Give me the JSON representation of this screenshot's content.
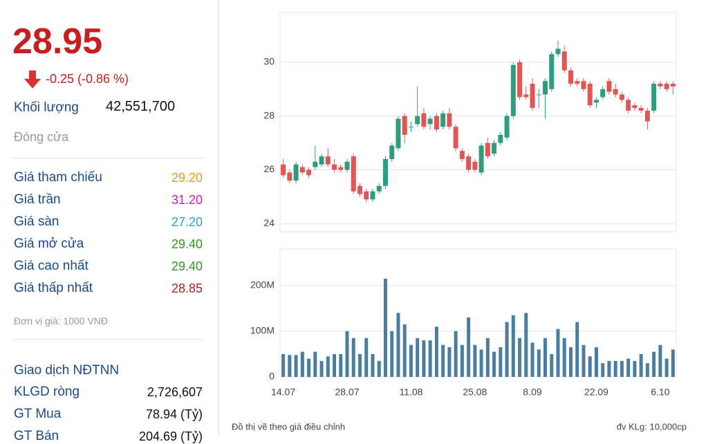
{
  "header": {
    "price": "28.95",
    "change": "-0.25 (-0.86 %)",
    "volume_label": "Khối lượng",
    "volume": "42,551,700",
    "status": "Đóng cửa"
  },
  "prices": [
    {
      "label": "Giá tham chiếu",
      "value": "29.20",
      "color": "#e89a1c"
    },
    {
      "label": "Giá trần",
      "value": "31.20",
      "color": "#c21fc2"
    },
    {
      "label": "Giá sàn",
      "value": "27.20",
      "color": "#2a9fd6"
    },
    {
      "label": "Giá mở cửa",
      "value": "29.40",
      "color": "#2f9a1e"
    },
    {
      "label": "Giá cao nhất",
      "value": "29.40",
      "color": "#2f9a1e"
    },
    {
      "label": "Giá thấp nhất",
      "value": "28.85",
      "color": "#b02222"
    }
  ],
  "unit_note": "Đơn vị giá: 1000 VNĐ",
  "foreign": {
    "title": "Giao dịch NĐTNN",
    "rows": [
      {
        "label": "KLGD ròng",
        "value": "2,726,607"
      },
      {
        "label": "GT Mua",
        "value": "78.94 (Tỷ)"
      },
      {
        "label": "GT Bán",
        "value": "204.69 (Tỷ)"
      }
    ]
  },
  "footer": {
    "note": "Đồ thị vẽ theo giá điều chỉnh",
    "unit": "đv KLg: 10,000cp"
  },
  "chart_data": [
    {
      "type": "candlestick",
      "up_color": "#2e9c7e",
      "down_color": "#e05656",
      "open": [
        26.2,
        25.9,
        25.6,
        26.1,
        26.0,
        26.1,
        26.2,
        26.5,
        26.2,
        26.1,
        26.0,
        26.5,
        25.4,
        25.2,
        24.9,
        25.2,
        25.4,
        26.4,
        26.8,
        28.0,
        27.6,
        27.7,
        28.1,
        27.7,
        28.0,
        27.6,
        28.1,
        27.6,
        26.7,
        26.5,
        26.3,
        25.9,
        27.0,
        26.6,
        27.0,
        27.2,
        28.0,
        30.0,
        28.8,
        29.2,
        28.8,
        28.8,
        29.0,
        30.3,
        30.4,
        29.7,
        29.3,
        29.3,
        29.2,
        28.5,
        28.7,
        29.3,
        29.0,
        28.8,
        28.6,
        28.4,
        28.3,
        28.2,
        28.2,
        29.2,
        29.2,
        29.2
      ],
      "high": [
        26.4,
        26.0,
        26.3,
        26.2,
        26.1,
        26.9,
        26.6,
        26.8,
        26.4,
        26.2,
        26.4,
        26.6,
        25.5,
        25.3,
        25.3,
        25.5,
        26.5,
        27.0,
        28.0,
        28.1,
        27.8,
        29.1,
        28.3,
        28.0,
        28.1,
        28.2,
        28.3,
        27.7,
        26.8,
        26.6,
        26.4,
        27.0,
        27.2,
        27.1,
        27.4,
        28.1,
        30.0,
        30.1,
        29.1,
        29.4,
        29.0,
        29.4,
        30.4,
        30.8,
        30.6,
        29.8,
        29.4,
        29.4,
        29.3,
        28.7,
        29.1,
        29.4,
        29.2,
        28.9,
        28.7,
        28.5,
        28.4,
        28.3,
        29.3,
        29.3,
        29.3,
        29.3
      ],
      "low": [
        25.7,
        25.5,
        25.5,
        25.8,
        25.7,
        26.0,
        26.1,
        26.1,
        25.9,
        25.9,
        25.9,
        25.1,
        25.0,
        24.8,
        24.8,
        25.1,
        25.3,
        26.3,
        26.7,
        27.0,
        27.4,
        27.6,
        27.5,
        27.5,
        27.4,
        27.5,
        27.5,
        26.7,
        26.3,
        25.9,
        25.9,
        25.8,
        26.4,
        26.5,
        26.9,
        27.1,
        27.9,
        28.6,
        28.6,
        28.2,
        28.3,
        27.9,
        28.9,
        30.2,
        29.6,
        29.1,
        29.1,
        28.9,
        28.3,
        28.3,
        28.6,
        28.8,
        28.7,
        28.5,
        28.1,
        28.2,
        28.1,
        27.5,
        28.1,
        29.0,
        28.9,
        28.8
      ],
      "close": [
        25.8,
        25.6,
        26.2,
        25.9,
        25.8,
        26.3,
        26.5,
        26.2,
        26.0,
        26.0,
        26.3,
        25.2,
        25.1,
        24.9,
        25.2,
        25.4,
        26.4,
        26.9,
        27.9,
        27.3,
        27.6,
        28.0,
        27.6,
        27.9,
        27.5,
        28.1,
        27.6,
        26.8,
        26.4,
        26.0,
        26.0,
        26.9,
        26.5,
        27.0,
        27.3,
        28.0,
        29.9,
        28.7,
        28.7,
        28.3,
        28.8,
        29.3,
        30.3,
        30.5,
        29.7,
        29.2,
        29.2,
        29.0,
        28.4,
        28.6,
        29.0,
        28.9,
        28.8,
        28.6,
        28.2,
        28.3,
        28.2,
        27.8,
        29.2,
        29.1,
        29.0,
        29.1
      ],
      "ylim": [
        23.7,
        31.85
      ],
      "yticks": [
        24,
        26,
        28,
        30
      ],
      "grid": true
    },
    {
      "type": "bar",
      "color": "#4a7e9e",
      "categories": [
        "14.07",
        null,
        null,
        null,
        null,
        null,
        null,
        null,
        null,
        null,
        "28.07",
        null,
        null,
        null,
        null,
        null,
        null,
        null,
        null,
        null,
        "11.08",
        null,
        null,
        null,
        null,
        null,
        null,
        null,
        null,
        null,
        "25.08",
        null,
        null,
        null,
        null,
        null,
        null,
        null,
        null,
        "8.09",
        null,
        null,
        null,
        null,
        null,
        null,
        null,
        null,
        null,
        "22.09",
        null,
        null,
        null,
        null,
        null,
        null,
        null,
        null,
        null,
        "6.10",
        null,
        null
      ],
      "values": [
        50000000,
        48000000,
        48000000,
        55000000,
        40000000,
        55000000,
        35000000,
        45000000,
        50000000,
        50000000,
        100000000,
        85000000,
        50000000,
        85000000,
        50000000,
        35000000,
        215000000,
        100000000,
        140000000,
        115000000,
        70000000,
        85000000,
        80000000,
        80000000,
        110000000,
        70000000,
        65000000,
        100000000,
        70000000,
        130000000,
        70000000,
        60000000,
        85000000,
        55000000,
        65000000,
        120000000,
        135000000,
        85000000,
        140000000,
        75000000,
        60000000,
        85000000,
        50000000,
        105000000,
        85000000,
        65000000,
        120000000,
        70000000,
        45000000,
        65000000,
        30000000,
        35000000,
        35000000,
        35000000,
        40000000,
        35000000,
        50000000,
        30000000,
        55000000,
        70000000,
        40000000,
        60000000
      ],
      "ylim": [
        0,
        280000000
      ],
      "yticks": [
        0,
        {
          "value": 100000000,
          "label": "100M"
        },
        {
          "value": 200000000,
          "label": "200M"
        }
      ],
      "grid": true
    }
  ]
}
